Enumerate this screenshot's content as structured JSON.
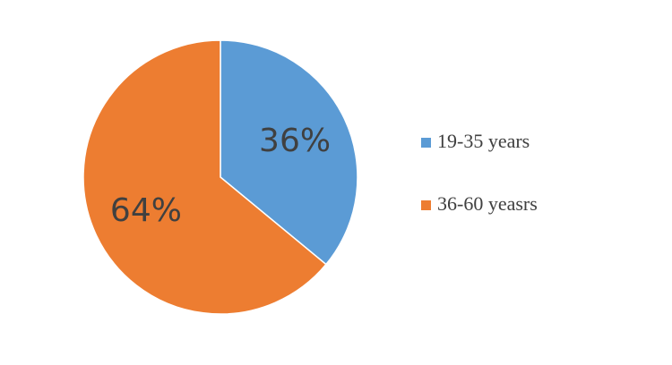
{
  "chart_data": {
    "type": "pie",
    "categories": [
      "19-35 years",
      "36-60 yeasrs"
    ],
    "values": [
      36,
      64
    ],
    "value_labels": [
      "36%",
      "64%"
    ],
    "colors": [
      "#5b9bd5",
      "#ed7d31"
    ],
    "legend": "right"
  }
}
